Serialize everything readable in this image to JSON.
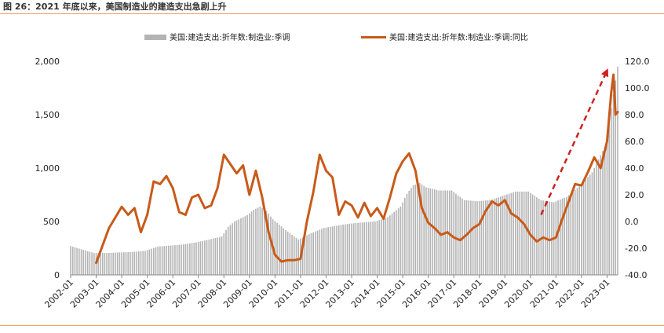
{
  "title": "图 26：2021 年底以来，美国制造业的建造支出急剧上升",
  "chart_data": {
    "type": "bar+line",
    "title": "图 26：2021 年底以来，美国制造业的建造支出急剧上升",
    "xlabel": "",
    "ylabel_left": "",
    "ylabel_right": "",
    "x_range": [
      "2002-01",
      "2023-06"
    ],
    "x_tick_labels": [
      "2002-01",
      "2003-01",
      "2004-01",
      "2005-01",
      "2006-01",
      "2007-01",
      "2008-01",
      "2009-01",
      "2010-01",
      "2011-01",
      "2012-01",
      "2013-01",
      "2014-01",
      "2015-01",
      "2016-01",
      "2017-01",
      "2018-01",
      "2019-01",
      "2020-01",
      "2021-01",
      "2022-01",
      "2023-01"
    ],
    "y_left": {
      "ylim": [
        0,
        2000
      ],
      "tick_labels": [
        "0",
        "500",
        "1,000",
        "1,500",
        "2,000"
      ]
    },
    "y_right": {
      "ylim": [
        -40,
        120
      ],
      "tick_labels": [
        "-40.0",
        "-20.0",
        "0.0",
        "20.0",
        "40.0",
        "60.0",
        "80.0",
        "100.0",
        "120.0"
      ]
    },
    "grid": false,
    "legend_position": "top",
    "series": [
      {
        "name": "美国:建造支出:折年数:制造业:季调",
        "type": "bar",
        "axis": "left",
        "color": "#b4b4b4",
        "anchors": [
          [
            "2002-01",
            270
          ],
          [
            "2002-06",
            240
          ],
          [
            "2002-12",
            205
          ],
          [
            "2003-06",
            205
          ],
          [
            "2003-12",
            210
          ],
          [
            "2004-06",
            215
          ],
          [
            "2004-12",
            225
          ],
          [
            "2005-06",
            265
          ],
          [
            "2005-12",
            275
          ],
          [
            "2006-06",
            285
          ],
          [
            "2006-12",
            305
          ],
          [
            "2007-06",
            330
          ],
          [
            "2007-12",
            360
          ],
          [
            "2008-03",
            450
          ],
          [
            "2008-06",
            500
          ],
          [
            "2008-12",
            560
          ],
          [
            "2009-03",
            610
          ],
          [
            "2009-06",
            640
          ],
          [
            "2009-09",
            600
          ],
          [
            "2009-12",
            520
          ],
          [
            "2010-06",
            420
          ],
          [
            "2010-12",
            330
          ],
          [
            "2011-06",
            390
          ],
          [
            "2011-12",
            440
          ],
          [
            "2012-06",
            460
          ],
          [
            "2012-12",
            480
          ],
          [
            "2013-06",
            490
          ],
          [
            "2013-12",
            500
          ],
          [
            "2014-06",
            540
          ],
          [
            "2014-12",
            640
          ],
          [
            "2015-03",
            760
          ],
          [
            "2015-06",
            840
          ],
          [
            "2015-09",
            860
          ],
          [
            "2015-12",
            820
          ],
          [
            "2016-06",
            790
          ],
          [
            "2016-12",
            790
          ],
          [
            "2017-06",
            700
          ],
          [
            "2017-12",
            690
          ],
          [
            "2018-06",
            700
          ],
          [
            "2018-12",
            740
          ],
          [
            "2019-06",
            780
          ],
          [
            "2019-12",
            780
          ],
          [
            "2020-06",
            700
          ],
          [
            "2020-12",
            680
          ],
          [
            "2021-06",
            730
          ],
          [
            "2021-12",
            830
          ],
          [
            "2022-06",
            960
          ],
          [
            "2022-12",
            1200
          ],
          [
            "2023-03",
            1560
          ],
          [
            "2023-06",
            1950
          ]
        ]
      },
      {
        "name": "美国:建造支出:折年数:制造业:季调:同比",
        "type": "line",
        "axis": "right",
        "color": "#c85a1a",
        "anchors": [
          [
            "2003-01",
            -31
          ],
          [
            "2003-04",
            -18
          ],
          [
            "2003-07",
            -5
          ],
          [
            "2003-10",
            3
          ],
          [
            "2004-01",
            11
          ],
          [
            "2004-04",
            5
          ],
          [
            "2004-07",
            10
          ],
          [
            "2004-10",
            -8
          ],
          [
            "2005-01",
            5
          ],
          [
            "2005-04",
            30
          ],
          [
            "2005-07",
            28
          ],
          [
            "2005-10",
            34
          ],
          [
            "2006-01",
            25
          ],
          [
            "2006-04",
            7
          ],
          [
            "2006-07",
            5
          ],
          [
            "2006-10",
            18
          ],
          [
            "2007-01",
            20
          ],
          [
            "2007-04",
            10
          ],
          [
            "2007-07",
            12
          ],
          [
            "2007-10",
            25
          ],
          [
            "2008-01",
            50
          ],
          [
            "2008-04",
            43
          ],
          [
            "2008-07",
            36
          ],
          [
            "2008-10",
            42
          ],
          [
            "2009-01",
            20
          ],
          [
            "2009-04",
            38
          ],
          [
            "2009-07",
            18
          ],
          [
            "2009-10",
            -8
          ],
          [
            "2010-01",
            -25
          ],
          [
            "2010-04",
            -30
          ],
          [
            "2010-07",
            -29
          ],
          [
            "2010-10",
            -29
          ],
          [
            "2011-01",
            -28
          ],
          [
            "2011-04",
            0
          ],
          [
            "2011-07",
            22
          ],
          [
            "2011-10",
            50
          ],
          [
            "2012-01",
            38
          ],
          [
            "2012-04",
            33
          ],
          [
            "2012-07",
            5
          ],
          [
            "2012-10",
            15
          ],
          [
            "2013-01",
            12
          ],
          [
            "2013-04",
            3
          ],
          [
            "2013-07",
            14
          ],
          [
            "2013-10",
            4
          ],
          [
            "2014-01",
            10
          ],
          [
            "2014-04",
            2
          ],
          [
            "2014-07",
            18
          ],
          [
            "2014-10",
            36
          ],
          [
            "2015-01",
            45
          ],
          [
            "2015-04",
            51
          ],
          [
            "2015-07",
            38
          ],
          [
            "2015-10",
            10
          ],
          [
            "2016-01",
            -1
          ],
          [
            "2016-04",
            -5
          ],
          [
            "2016-07",
            -10
          ],
          [
            "2016-10",
            -8
          ],
          [
            "2017-01",
            -12
          ],
          [
            "2017-04",
            -14
          ],
          [
            "2017-07",
            -10
          ],
          [
            "2017-10",
            -5
          ],
          [
            "2018-01",
            -2
          ],
          [
            "2018-04",
            8
          ],
          [
            "2018-07",
            15
          ],
          [
            "2018-10",
            12
          ],
          [
            "2019-01",
            16
          ],
          [
            "2019-04",
            6
          ],
          [
            "2019-07",
            3
          ],
          [
            "2019-10",
            -2
          ],
          [
            "2020-01",
            -10
          ],
          [
            "2020-04",
            -15
          ],
          [
            "2020-07",
            -12
          ],
          [
            "2020-10",
            -14
          ],
          [
            "2021-01",
            -12
          ],
          [
            "2021-04",
            2
          ],
          [
            "2021-07",
            15
          ],
          [
            "2021-10",
            28
          ],
          [
            "2022-01",
            27
          ],
          [
            "2022-04",
            37
          ],
          [
            "2022-07",
            48
          ],
          [
            "2022-10",
            40
          ],
          [
            "2023-01",
            60
          ],
          [
            "2023-03",
            97
          ],
          [
            "2023-04",
            110
          ],
          [
            "2023-05",
            80
          ],
          [
            "2023-06",
            82
          ]
        ]
      }
    ],
    "annotations": [
      {
        "type": "arrow",
        "style": "dashed",
        "color": "#cc2222",
        "from": [
          "2020-06",
          5
        ],
        "to": [
          "2023-01",
          113
        ]
      }
    ]
  }
}
